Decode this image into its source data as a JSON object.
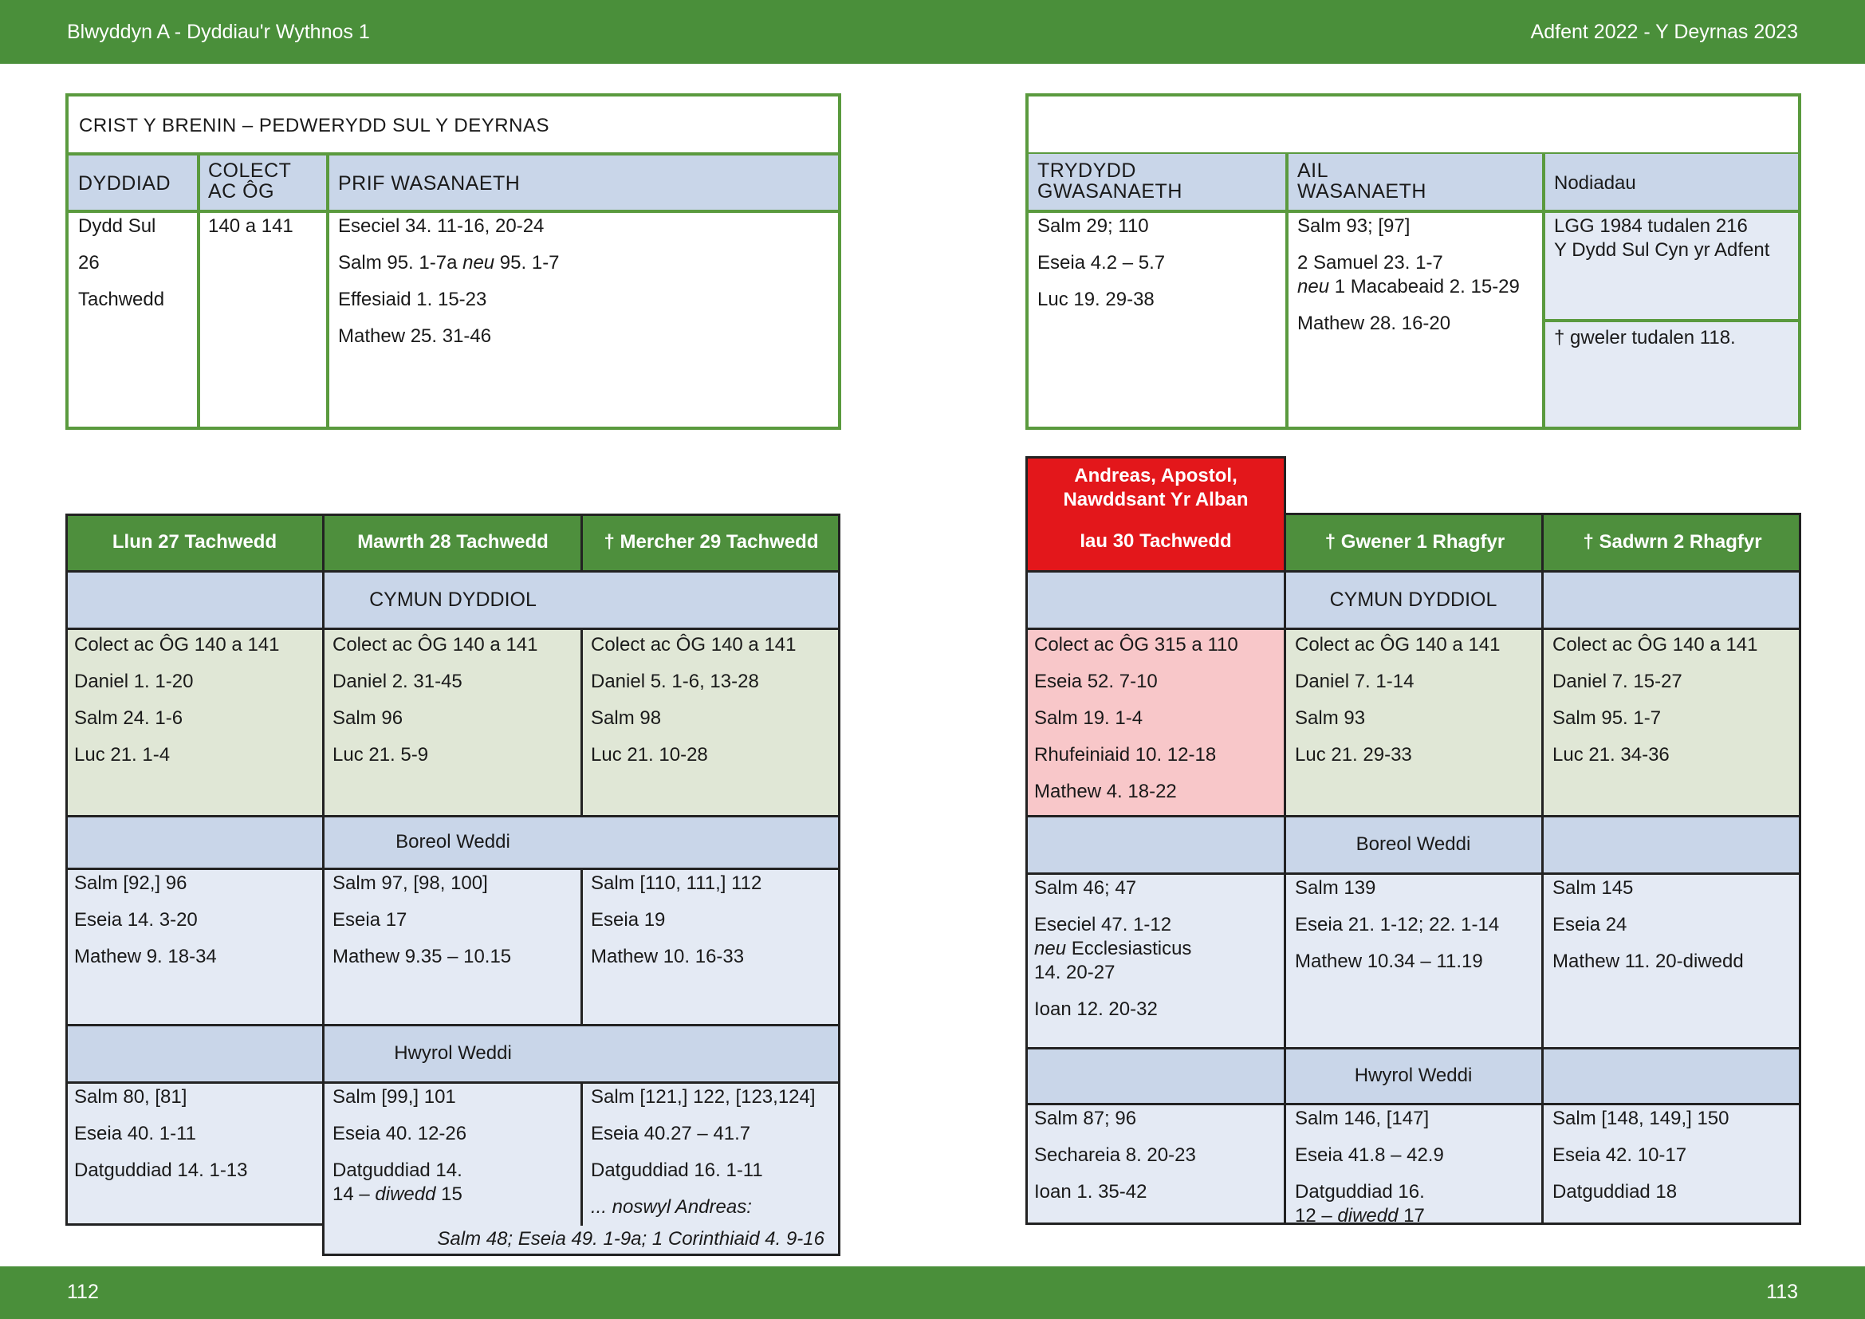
{
  "header": {
    "left": "Blwyddyn  A - Dyddiau'r Wythnos 1",
    "right": "Adfent  2022 - Y Deyrnas 2023"
  },
  "footer": {
    "left_page": "112",
    "right_page": "113"
  },
  "sunday": {
    "title": "CRIST Y BRENIN – PEDWERYDD SUL Y DEYRNAS",
    "col_headers": [
      "DYDDIAD",
      "COLECT AC ÔG",
      "PRIF WASANAETH"
    ],
    "date": [
      "Dydd Sul",
      "26",
      "Tachwedd"
    ],
    "collect": "140 a 141",
    "principal": [
      "Eseciel 34. 11-16, 20-24",
      "Salm 95. 1-7a",
      "neu",
      " 95. 1-7",
      "Effesiaid 1. 15-23",
      "Mathew 25. 31-46"
    ]
  },
  "sunday_right": {
    "col_headers": [
      "TRYDYDD GWASANAETH",
      "AIL WASANAETH",
      "Nodiadau"
    ],
    "third": [
      "Salm 29; 110",
      "Eseia 4.2 – 5.7",
      "Luc 19.  29-38"
    ],
    "second": [
      "Salm 93; [97]",
      "2 Samuel 23. 1-7",
      "neu",
      " 1 Macabeaid 2. 15-29",
      "Mathew 28. 16-20"
    ],
    "notes": [
      "LGG 1984 tudalen 216",
      "Y Dydd Sul Cyn yr Adfent",
      "†  gweler tudalen 118."
    ]
  },
  "sections": {
    "eucharist": "CYMUN DYDDIOL",
    "morning": "Boreol Weddi",
    "evening": "Hwyrol Weddi"
  },
  "left_week": {
    "days": [
      "Llun 27 Tachwedd",
      "Mawrth 28 Tachwedd",
      "†  Mercher  29 Tachwedd"
    ],
    "eucharist": [
      [
        "Colect ac ÔG 140 a 141",
        "Daniel 1. 1-20",
        "Salm 24. 1-6",
        "Luc 21. 1-4"
      ],
      [
        "Colect ac ÔG 140 a 141",
        "Daniel 2. 31-45",
        "Salm 96",
        "Luc 21. 5-9"
      ],
      [
        "Colect ac ÔG 140 a 141",
        "Daniel 5. 1-6, 13-28",
        "Salm 98",
        "Luc 21. 10-28"
      ]
    ],
    "morning": [
      [
        "Salm [92,] 96",
        "Eseia 14. 3-20",
        "Mathew 9. 18-34"
      ],
      [
        "Salm 97, [98, 100]",
        "Eseia 17",
        "Mathew 9.35 – 10.15"
      ],
      [
        "Salm [110, 111,] 112",
        "Eseia 19",
        "Mathew 10. 16-33"
      ]
    ],
    "evening": [
      [
        "Salm 80, [81]",
        "Eseia 40. 1-11",
        "Datguddiad 14. 1-13"
      ],
      [
        "Salm [99,] 101",
        "Eseia 40. 12-26",
        "Datguddiad 14.",
        "14 –",
        "diwedd",
        " 15"
      ],
      [
        "Salm [121,] 122, [123,124]",
        "Eseia 40.27 – 41.7",
        "Datguddiad 16. 1-11",
        "... noswyl Andreas:"
      ]
    ],
    "eve_note": "Salm 48;  Eseia 49. 1-9a;  1 Corinthiaid 4. 9-16"
  },
  "right_week": {
    "feast_title": [
      "Andreas, Apostol,",
      "Nawddsant Yr Alban"
    ],
    "days": [
      "Iau 30 Tachwedd",
      "†  Gwener 1 Rhagfyr",
      "†  Sadwrn 2 Rhagfyr"
    ],
    "eucharist": [
      [
        "Colect ac ÔG 315 a 110",
        "Eseia 52. 7-10",
        "Salm 19. 1-4",
        "Rhufeiniaid 10. 12-18",
        "Mathew 4. 18-22"
      ],
      [
        "Colect ac ÔG 140 a 141",
        "Daniel 7. 1-14",
        "Salm 93",
        "Luc 21. 29-33"
      ],
      [
        "Colect ac ÔG 140 a 141",
        "Daniel 7. 15-27",
        "Salm 95. 1-7",
        "Luc 21. 34-36"
      ]
    ],
    "morning": [
      [
        "Salm 46; 47",
        "Eseciel 47. 1-12",
        "neu",
        " Ecclesiasticus",
        "14. 20-27",
        "Ioan 12. 20-32"
      ],
      [
        "Salm 139",
        "Eseia 21. 1-12; 22. 1-14",
        "Mathew 10.34 – 11.19"
      ],
      [
        "Salm 145",
        "Eseia 24",
        "Mathew 11. 20-diwedd"
      ]
    ],
    "evening": [
      [
        "Salm 87; 96",
        "Sechareia 8. 20-23",
        "Ioan 1. 35-42"
      ],
      [
        "Salm 146, [147]",
        "Eseia 41.8 – 42.9",
        "Datguddiad 16.",
        "12 –",
        "diwedd",
        " 17"
      ],
      [
        "Salm [148, 149,] 150",
        "Eseia 42. 10-17",
        "Datguddiad 18"
      ]
    ]
  },
  "colors": {
    "green": "#4a8f3a",
    "red": "#e3171b",
    "header_blue": "#c9d6e9",
    "pale_blue": "#e4eaf4",
    "sage": "#e0e7d6",
    "pink": "#f8c7c9"
  }
}
